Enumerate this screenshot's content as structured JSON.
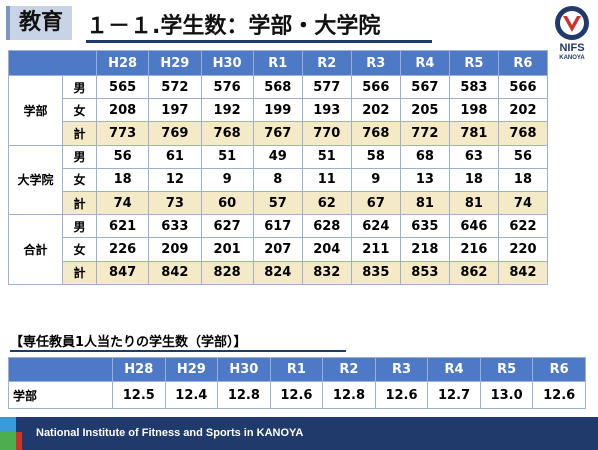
{
  "header": {
    "tag": "教育",
    "title": "１－１.学生数：学部・大学院"
  },
  "logo": {
    "name": "NIFS",
    "sub": "KANOYA"
  },
  "years": [
    "H28",
    "H29",
    "H30",
    "R1",
    "R2",
    "R3",
    "R4",
    "R5",
    "R6"
  ],
  "enrollment": {
    "groups": [
      {
        "label": "学部",
        "rows": [
          {
            "sex": "男",
            "values": [
              "565",
              "572",
              "576",
              "568",
              "577",
              "566",
              "567",
              "583",
              "566"
            ]
          },
          {
            "sex": "女",
            "values": [
              "208",
              "197",
              "192",
              "199",
              "193",
              "202",
              "205",
              "198",
              "202"
            ]
          },
          {
            "sex": "計",
            "values": [
              "773",
              "769",
              "768",
              "767",
              "770",
              "768",
              "772",
              "781",
              "768"
            ]
          }
        ]
      },
      {
        "label": "大学院",
        "rows": [
          {
            "sex": "男",
            "values": [
              "56",
              "61",
              "51",
              "49",
              "51",
              "58",
              "68",
              "63",
              "56"
            ]
          },
          {
            "sex": "女",
            "values": [
              "18",
              "12",
              "9",
              "8",
              "11",
              "9",
              "13",
              "18",
              "18"
            ]
          },
          {
            "sex": "計",
            "values": [
              "74",
              "73",
              "60",
              "57",
              "62",
              "67",
              "81",
              "81",
              "74"
            ]
          }
        ]
      },
      {
        "label": "合計",
        "rows": [
          {
            "sex": "男",
            "values": [
              "621",
              "633",
              "627",
              "617",
              "628",
              "624",
              "635",
              "646",
              "622"
            ]
          },
          {
            "sex": "女",
            "values": [
              "226",
              "209",
              "201",
              "207",
              "204",
              "211",
              "218",
              "216",
              "220"
            ]
          },
          {
            "sex": "計",
            "values": [
              "847",
              "842",
              "828",
              "824",
              "832",
              "835",
              "853",
              "862",
              "842"
            ]
          }
        ]
      }
    ]
  },
  "ratio": {
    "title": "【専任教員1人当たりの学生数（学部）】",
    "row_label": "学部",
    "values": [
      "12.5",
      "12.4",
      "12.8",
      "12.6",
      "12.8",
      "12.6",
      "12.7",
      "13.0",
      "12.6"
    ]
  },
  "footer": {
    "text": "National Institute of Fitness and Sports in KANOYA"
  },
  "colors": {
    "header_blue": "#4d79c6",
    "total_row": "#f5eac8",
    "navy": "#1f3a6b"
  }
}
